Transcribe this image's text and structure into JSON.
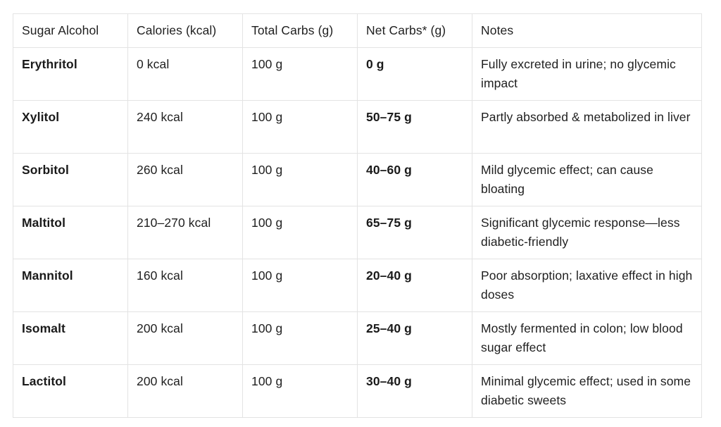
{
  "table": {
    "headers": [
      "Sugar Alcohol",
      "Calories (kcal)",
      "Total Carbs (g)",
      "Net Carbs* (g)",
      "Notes"
    ],
    "rows": [
      {
        "name": "Erythritol",
        "calories": "0 kcal",
        "total_carbs": "100 g",
        "net_carbs": "0 g",
        "notes": "Fully excreted in urine; no glycemic impact"
      },
      {
        "name": "Xylitol",
        "calories": "240 kcal",
        "total_carbs": "100 g",
        "net_carbs": "50–75 g",
        "notes": "Partly absorbed & metabolized in liver"
      },
      {
        "name": "Sorbitol",
        "calories": "260 kcal",
        "total_carbs": "100 g",
        "net_carbs": "40–60 g",
        "notes": "Mild glycemic effect; can cause bloating"
      },
      {
        "name": "Maltitol",
        "calories": "210–270 kcal",
        "total_carbs": "100 g",
        "net_carbs": "65–75 g",
        "notes": "Significant glycemic response—less diabetic-friendly"
      },
      {
        "name": "Mannitol",
        "calories": "160 kcal",
        "total_carbs": "100 g",
        "net_carbs": "20–40 g",
        "notes": "Poor absorption; laxative effect in high doses"
      },
      {
        "name": "Isomalt",
        "calories": "200 kcal",
        "total_carbs": "100 g",
        "net_carbs": "25–40 g",
        "notes": "Mostly fermented in colon; low blood sugar effect"
      },
      {
        "name": "Lactitol",
        "calories": "200 kcal",
        "total_carbs": "100 g",
        "net_carbs": "30–40 g",
        "notes": "Minimal glycemic effect; used in some diabetic sweets"
      }
    ]
  }
}
